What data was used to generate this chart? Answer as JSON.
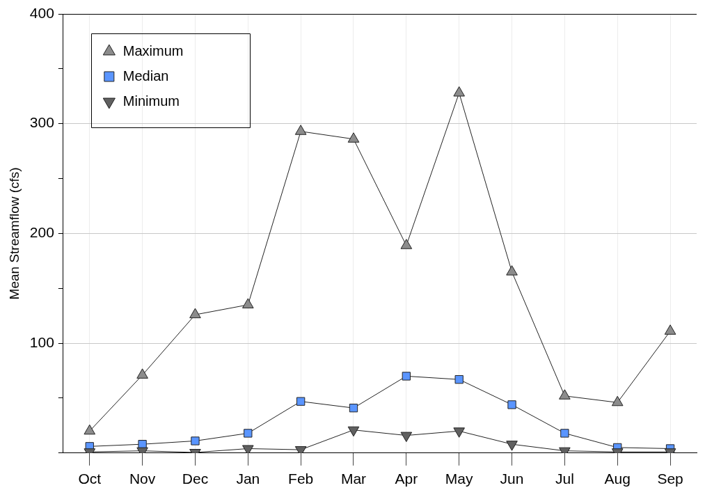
{
  "chart_data": {
    "type": "line",
    "ylabel": "Mean Streamflow (cfs)",
    "categories": [
      "Oct",
      "Nov",
      "Dec",
      "Jan",
      "Feb",
      "Mar",
      "Apr",
      "May",
      "Jun",
      "Jul",
      "Aug",
      "Sep"
    ],
    "series": [
      {
        "name": "Maximum",
        "color": "#8c8c8c",
        "marker": "triangle",
        "values": [
          20,
          71,
          126,
          135,
          293,
          286,
          189,
          328,
          165,
          52,
          46,
          111
        ]
      },
      {
        "name": "Median",
        "color": "#5a95ff",
        "marker": "square",
        "values": [
          6,
          8,
          11,
          18,
          47,
          41,
          70,
          67,
          44,
          18,
          5,
          4
        ]
      },
      {
        "name": "Minimum",
        "color": "#606060",
        "marker": "triangle-down",
        "values": [
          1,
          2,
          0.5,
          4,
          3,
          21,
          16,
          20,
          8,
          2,
          1,
          1
        ]
      }
    ],
    "ylim": [
      0,
      400
    ],
    "yticks": [
      {
        "value": 0,
        "label": null
      },
      {
        "value": 50,
        "label": null
      },
      100,
      {
        "value": 150,
        "label": null
      },
      200,
      {
        "value": 250,
        "label": null
      },
      300,
      {
        "value": 350,
        "label": null
      },
      400
    ],
    "grid": true,
    "legend": "top left",
    "line_style": "solid"
  }
}
